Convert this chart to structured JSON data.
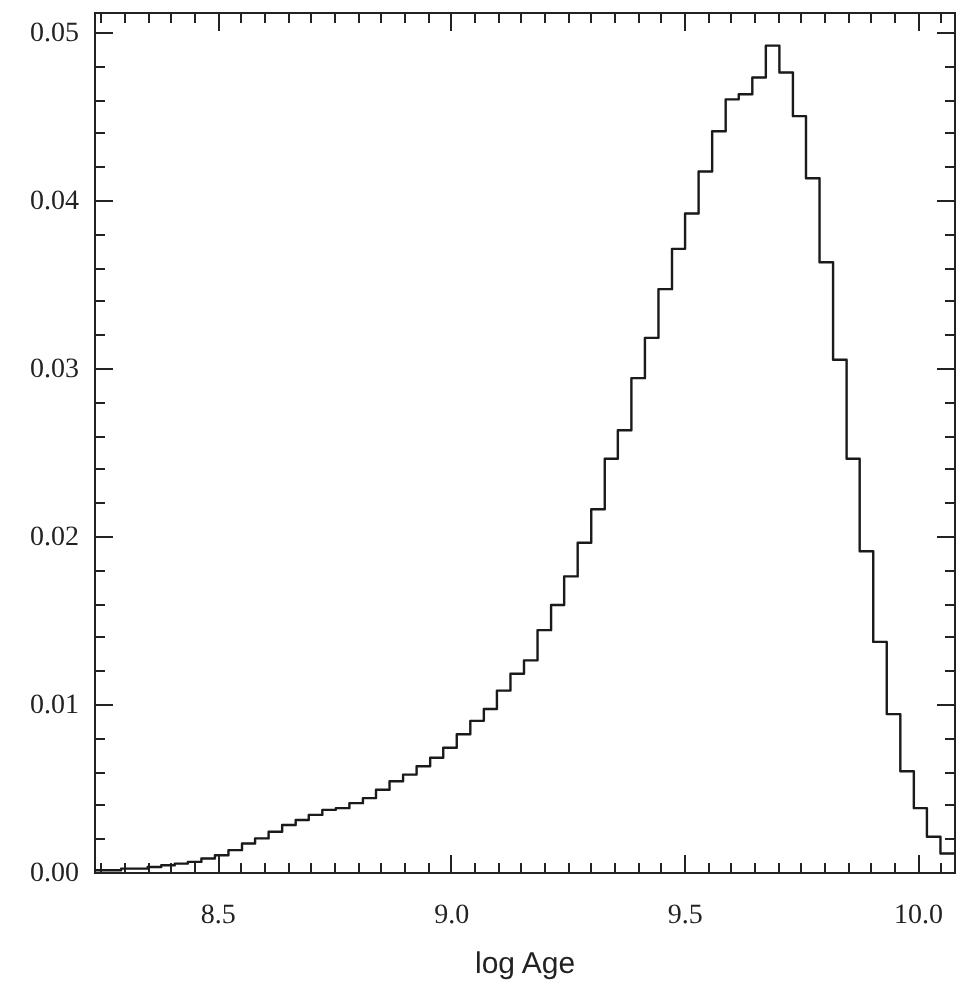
{
  "chart_data": {
    "type": "histogram",
    "xlabel": "log Age",
    "color": "#1a1a1a",
    "bins": [
      8.236,
      8.265,
      8.294,
      8.322,
      8.351,
      8.38,
      8.409,
      8.437,
      8.466,
      8.495,
      8.524,
      8.553,
      8.581,
      8.61,
      8.639,
      8.668,
      8.696,
      8.725,
      8.754,
      8.783,
      8.812,
      8.84,
      8.869,
      8.898,
      8.927,
      8.956,
      8.984,
      9.013,
      9.042,
      9.071,
      9.099,
      9.128,
      9.157,
      9.186,
      9.215,
      9.243,
      9.272,
      9.301,
      9.33,
      9.358,
      9.387,
      9.416,
      9.445,
      9.474,
      9.502,
      9.531,
      9.56,
      9.589,
      9.617,
      9.646,
      9.675,
      9.704,
      9.733,
      9.761,
      9.79,
      9.819,
      9.848,
      9.876,
      9.905,
      9.934,
      9.963,
      9.992,
      10.02,
      10.049,
      10.078
    ],
    "values": [
      0.0001,
      0.0001,
      0.0002,
      0.0002,
      0.0003,
      0.0004,
      0.0005,
      0.0006,
      0.0008,
      0.001,
      0.0013,
      0.0017,
      0.002,
      0.0024,
      0.0028,
      0.0031,
      0.0034,
      0.0037,
      0.0038,
      0.0041,
      0.0044,
      0.0049,
      0.0054,
      0.0058,
      0.0063,
      0.0068,
      0.0074,
      0.0082,
      0.009,
      0.0097,
      0.0108,
      0.0118,
      0.0126,
      0.0144,
      0.0159,
      0.0176,
      0.0196,
      0.0216,
      0.0246,
      0.0263,
      0.0294,
      0.0318,
      0.0347,
      0.0371,
      0.0392,
      0.0417,
      0.0441,
      0.046,
      0.0463,
      0.0473,
      0.0492,
      0.0476,
      0.045,
      0.0413,
      0.0363,
      0.0305,
      0.0246,
      0.0191,
      0.0137,
      0.0094,
      0.006,
      0.0038,
      0.0021,
      0.0011
    ],
    "xlim": [
      8.236,
      10.078
    ],
    "ylim": [
      0,
      0.0512
    ],
    "xticks": [
      {
        "value": 8.25,
        "label": null
      },
      {
        "value": 8.3,
        "label": null
      },
      {
        "value": 8.35,
        "label": null
      },
      {
        "value": 8.4,
        "label": null
      },
      {
        "value": 8.45,
        "label": null
      },
      8.5,
      {
        "value": 8.55,
        "label": null
      },
      {
        "value": 8.6,
        "label": null
      },
      {
        "value": 8.65,
        "label": null
      },
      {
        "value": 8.7,
        "label": null
      },
      {
        "value": 8.75,
        "label": null
      },
      {
        "value": 8.8,
        "label": null
      },
      {
        "value": 8.85,
        "label": null
      },
      {
        "value": 8.9,
        "label": null
      },
      {
        "value": 8.95,
        "label": null
      },
      {
        "value": 9,
        "label": "9.0"
      },
      {
        "value": 9.05,
        "label": null
      },
      {
        "value": 9.1,
        "label": null
      },
      {
        "value": 9.15,
        "label": null
      },
      {
        "value": 9.2,
        "label": null
      },
      {
        "value": 9.25,
        "label": null
      },
      {
        "value": 9.3,
        "label": null
      },
      {
        "value": 9.35,
        "label": null
      },
      {
        "value": 9.4,
        "label": null
      },
      {
        "value": 9.45,
        "label": null
      },
      9.5,
      {
        "value": 9.55,
        "label": null
      },
      {
        "value": 9.6,
        "label": null
      },
      {
        "value": 9.65,
        "label": null
      },
      {
        "value": 9.7,
        "label": null
      },
      {
        "value": 9.75,
        "label": null
      },
      {
        "value": 9.8,
        "label": null
      },
      {
        "value": 9.85,
        "label": null
      },
      {
        "value": 9.9,
        "label": null
      },
      {
        "value": 9.95,
        "label": null
      },
      {
        "value": 10,
        "label": "10.0"
      },
      {
        "value": 10.05,
        "label": null
      }
    ],
    "yticks": [
      {
        "value": 0,
        "label": "0.00"
      },
      {
        "value": 0.002,
        "label": null
      },
      {
        "value": 0.004,
        "label": null
      },
      {
        "value": 0.006,
        "label": null
      },
      {
        "value": 0.008,
        "label": null
      },
      0.01,
      {
        "value": 0.012,
        "label": null
      },
      {
        "value": 0.014,
        "label": null
      },
      {
        "value": 0.016,
        "label": null
      },
      {
        "value": 0.018,
        "label": null
      },
      0.02,
      {
        "value": 0.022,
        "label": null
      },
      {
        "value": 0.024,
        "label": null
      },
      {
        "value": 0.026,
        "label": null
      },
      {
        "value": 0.028,
        "label": null
      },
      0.03,
      {
        "value": 0.032,
        "label": null
      },
      {
        "value": 0.034,
        "label": null
      },
      {
        "value": 0.036,
        "label": null
      },
      {
        "value": 0.038,
        "label": null
      },
      0.04,
      {
        "value": 0.042,
        "label": null
      },
      {
        "value": 0.044,
        "label": null
      },
      {
        "value": 0.046,
        "label": null
      },
      {
        "value": 0.048,
        "label": null
      },
      0.05
    ]
  }
}
